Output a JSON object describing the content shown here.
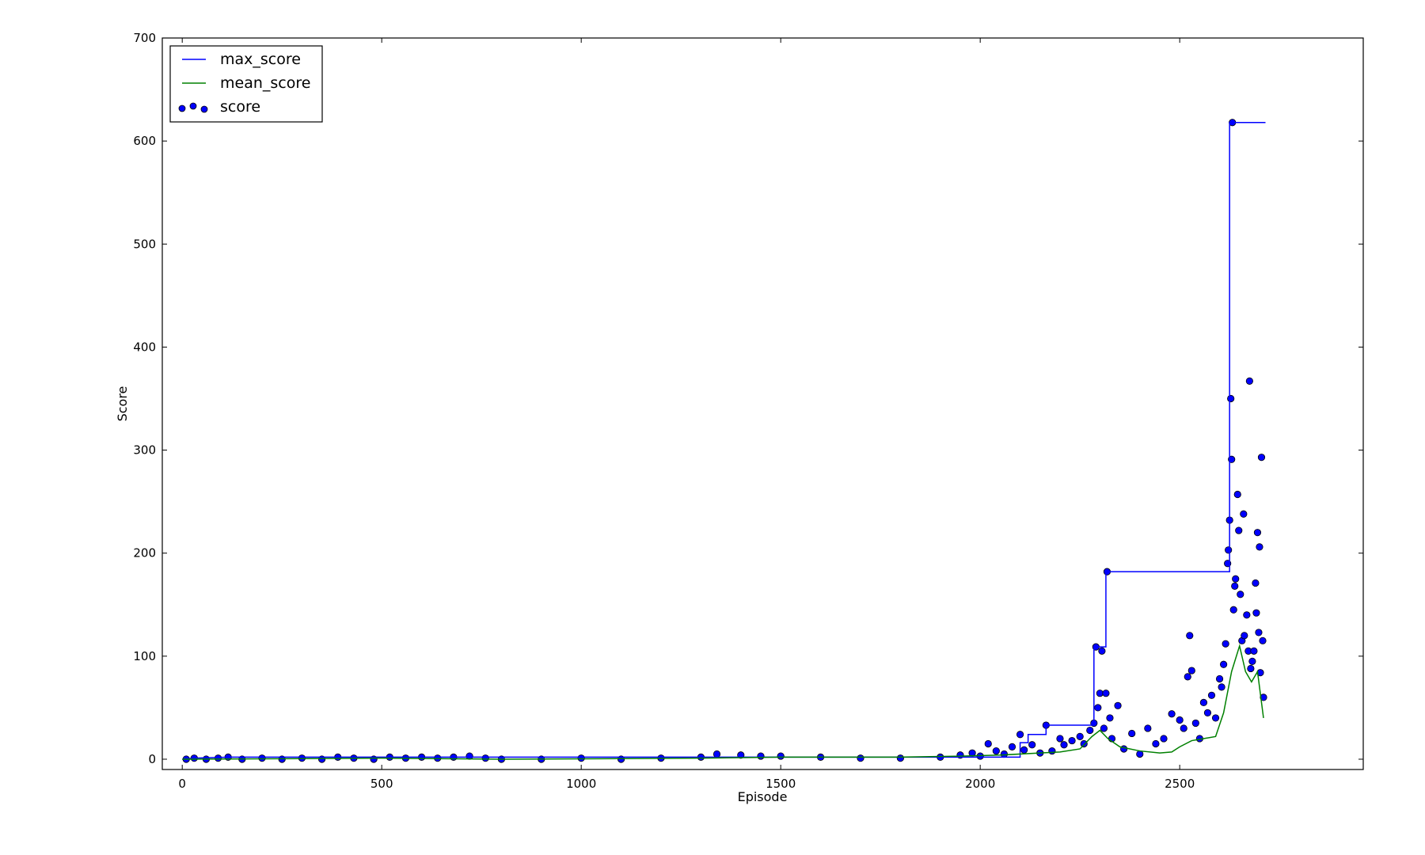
{
  "chart_data": {
    "type": "scatter",
    "title": "",
    "xlabel": "Episode",
    "ylabel": "Score",
    "xlim": [
      -50,
      2960
    ],
    "ylim": [
      -10,
      700
    ],
    "xticks": [
      0,
      500,
      1000,
      1500,
      2000,
      2500
    ],
    "yticks": [
      0,
      100,
      200,
      300,
      400,
      500,
      600,
      700
    ],
    "grid": false,
    "legend": {
      "position": "top-left",
      "entries": [
        {
          "name": "max_score",
          "marker": "line",
          "color": "#0000ff"
        },
        {
          "name": "mean_score",
          "marker": "line",
          "color": "#008000"
        },
        {
          "name": "score",
          "marker": "dots",
          "color": "#0000ff"
        }
      ]
    },
    "series": [
      {
        "name": "max_score",
        "kind": "step-line",
        "color": "#0000ff",
        "points": [
          [
            0,
            0
          ],
          [
            30,
            1
          ],
          [
            120,
            2
          ],
          [
            2100,
            2
          ],
          [
            2100,
            16
          ],
          [
            2120,
            16
          ],
          [
            2120,
            24
          ],
          [
            2165,
            24
          ],
          [
            2165,
            33
          ],
          [
            2285,
            33
          ],
          [
            2285,
            109
          ],
          [
            2315,
            109
          ],
          [
            2315,
            182
          ],
          [
            2625,
            182
          ],
          [
            2625,
            618
          ],
          [
            2715,
            618
          ]
        ]
      },
      {
        "name": "mean_score",
        "kind": "line",
        "color": "#008000",
        "points": [
          [
            0,
            0
          ],
          [
            500,
            1
          ],
          [
            800,
            0
          ],
          [
            1300,
            1
          ],
          [
            1500,
            2
          ],
          [
            1800,
            2
          ],
          [
            1950,
            3
          ],
          [
            2050,
            4
          ],
          [
            2150,
            6
          ],
          [
            2200,
            7
          ],
          [
            2250,
            10
          ],
          [
            2280,
            22
          ],
          [
            2300,
            28
          ],
          [
            2320,
            20
          ],
          [
            2350,
            12
          ],
          [
            2400,
            8
          ],
          [
            2450,
            6
          ],
          [
            2480,
            7
          ],
          [
            2500,
            12
          ],
          [
            2530,
            18
          ],
          [
            2560,
            20
          ],
          [
            2590,
            22
          ],
          [
            2610,
            45
          ],
          [
            2630,
            85
          ],
          [
            2650,
            110
          ],
          [
            2665,
            85
          ],
          [
            2680,
            75
          ],
          [
            2695,
            85
          ],
          [
            2710,
            40
          ]
        ]
      },
      {
        "name": "score",
        "kind": "scatter",
        "color": "#0000ff",
        "edge": "#000000",
        "points": [
          [
            10,
            0
          ],
          [
            30,
            1
          ],
          [
            60,
            0
          ],
          [
            90,
            1
          ],
          [
            115,
            2
          ],
          [
            150,
            0
          ],
          [
            200,
            1
          ],
          [
            250,
            0
          ],
          [
            300,
            1
          ],
          [
            350,
            0
          ],
          [
            390,
            2
          ],
          [
            430,
            1
          ],
          [
            480,
            0
          ],
          [
            520,
            2
          ],
          [
            560,
            1
          ],
          [
            600,
            2
          ],
          [
            640,
            1
          ],
          [
            680,
            2
          ],
          [
            720,
            3
          ],
          [
            760,
            1
          ],
          [
            800,
            0
          ],
          [
            900,
            0
          ],
          [
            1000,
            1
          ],
          [
            1100,
            0
          ],
          [
            1200,
            1
          ],
          [
            1300,
            2
          ],
          [
            1340,
            5
          ],
          [
            1400,
            4
          ],
          [
            1450,
            3
          ],
          [
            1500,
            3
          ],
          [
            1600,
            2
          ],
          [
            1700,
            1
          ],
          [
            1800,
            1
          ],
          [
            1900,
            2
          ],
          [
            1950,
            4
          ],
          [
            1980,
            6
          ],
          [
            2000,
            3
          ],
          [
            2020,
            15
          ],
          [
            2040,
            8
          ],
          [
            2060,
            5
          ],
          [
            2080,
            12
          ],
          [
            2100,
            24
          ],
          [
            2110,
            9
          ],
          [
            2130,
            14
          ],
          [
            2150,
            6
          ],
          [
            2165,
            33
          ],
          [
            2180,
            8
          ],
          [
            2200,
            20
          ],
          [
            2210,
            14
          ],
          [
            2230,
            18
          ],
          [
            2250,
            22
          ],
          [
            2260,
            15
          ],
          [
            2275,
            28
          ],
          [
            2285,
            35
          ],
          [
            2290,
            109
          ],
          [
            2295,
            50
          ],
          [
            2300,
            64
          ],
          [
            2305,
            105
          ],
          [
            2310,
            30
          ],
          [
            2315,
            64
          ],
          [
            2318,
            182
          ],
          [
            2325,
            40
          ],
          [
            2330,
            20
          ],
          [
            2345,
            52
          ],
          [
            2360,
            10
          ],
          [
            2380,
            25
          ],
          [
            2400,
            5
          ],
          [
            2420,
            30
          ],
          [
            2440,
            15
          ],
          [
            2460,
            20
          ],
          [
            2480,
            44
          ],
          [
            2500,
            38
          ],
          [
            2510,
            30
          ],
          [
            2520,
            80
          ],
          [
            2525,
            120
          ],
          [
            2530,
            86
          ],
          [
            2540,
            35
          ],
          [
            2550,
            20
          ],
          [
            2560,
            55
          ],
          [
            2570,
            45
          ],
          [
            2580,
            62
          ],
          [
            2590,
            40
          ],
          [
            2600,
            78
          ],
          [
            2605,
            70
          ],
          [
            2610,
            92
          ],
          [
            2615,
            112
          ],
          [
            2620,
            190
          ],
          [
            2622,
            203
          ],
          [
            2625,
            232
          ],
          [
            2628,
            350
          ],
          [
            2630,
            291
          ],
          [
            2632,
            618
          ],
          [
            2635,
            145
          ],
          [
            2638,
            168
          ],
          [
            2640,
            175
          ],
          [
            2645,
            257
          ],
          [
            2648,
            222
          ],
          [
            2652,
            160
          ],
          [
            2656,
            115
          ],
          [
            2660,
            238
          ],
          [
            2662,
            120
          ],
          [
            2668,
            140
          ],
          [
            2672,
            105
          ],
          [
            2675,
            367
          ],
          [
            2678,
            88
          ],
          [
            2682,
            95
          ],
          [
            2686,
            105
          ],
          [
            2690,
            171
          ],
          [
            2692,
            142
          ],
          [
            2695,
            220
          ],
          [
            2698,
            123
          ],
          [
            2700,
            206
          ],
          [
            2702,
            84
          ],
          [
            2705,
            293
          ],
          [
            2708,
            115
          ],
          [
            2710,
            60
          ]
        ]
      }
    ]
  }
}
